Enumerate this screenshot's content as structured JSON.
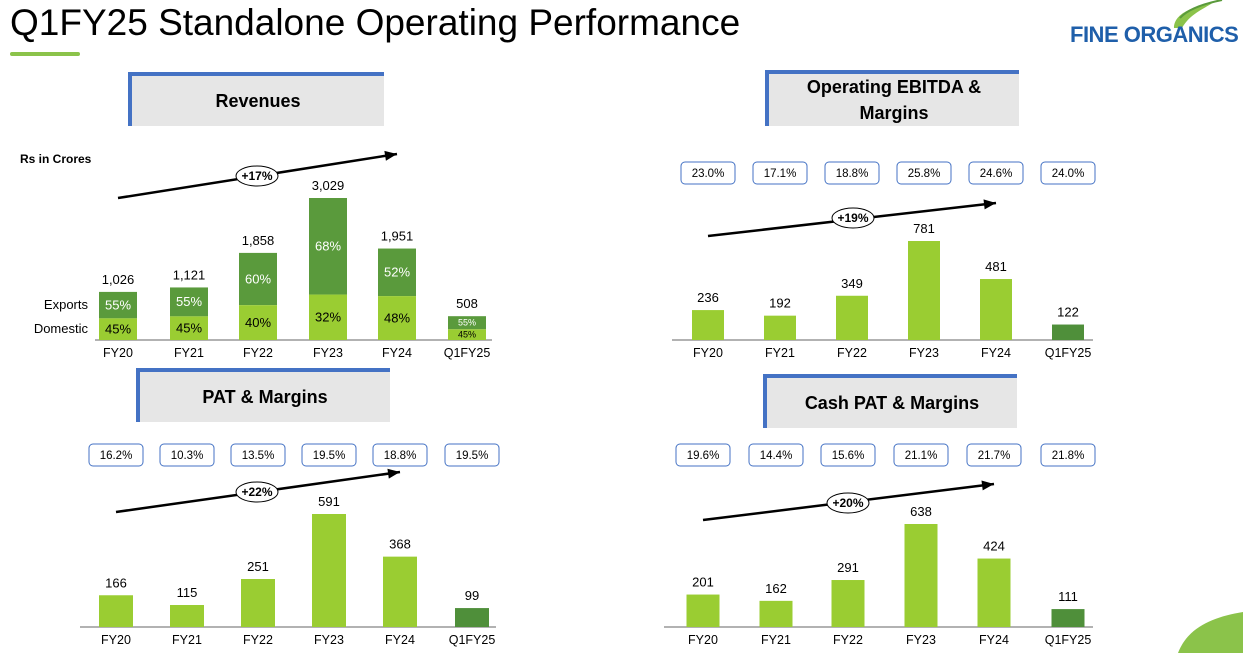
{
  "page": {
    "title": "Q1FY25 Standalone Operating Performance",
    "logo_text": "FINE ORGANICS",
    "colors": {
      "fy_bar": "#9acd32",
      "q1_bar": "#4f8f3a",
      "exports": "#5a9a3c",
      "domestic": "#9acd32",
      "box_border": "#4472c4",
      "header_accent": "#4472c4"
    }
  },
  "chart_data": [
    {
      "type": "bar",
      "title": "Revenues",
      "unit_label": "Rs in Crores",
      "categories": [
        "FY20",
        "FY21",
        "FY22",
        "FY23",
        "FY24",
        "Q1FY25"
      ],
      "values": [
        1026,
        1121,
        1858,
        3029,
        1951,
        508
      ],
      "value_labels": [
        "1,026",
        "1,121",
        "1,858",
        "3,029",
        "1,951",
        "508"
      ],
      "series": [
        {
          "name": "Exports",
          "shares": [
            "55%",
            "55%",
            "60%",
            "68%",
            "52%",
            "55%"
          ]
        },
        {
          "name": "Domestic",
          "shares": [
            "45%",
            "45%",
            "40%",
            "32%",
            "48%",
            "45%"
          ]
        }
      ],
      "growth_label": "+17%"
    },
    {
      "type": "bar",
      "title": "Operating EBITDA & Margins",
      "categories": [
        "FY20",
        "FY21",
        "FY22",
        "FY23",
        "FY24",
        "Q1FY25"
      ],
      "values": [
        236,
        192,
        349,
        781,
        481,
        122
      ],
      "value_labels": [
        "236",
        "192",
        "349",
        "781",
        "481",
        "122"
      ],
      "margins": [
        "23.0%",
        "17.1%",
        "18.8%",
        "25.8%",
        "24.6%",
        "24.0%"
      ],
      "growth_label": "+19%"
    },
    {
      "type": "bar",
      "title": "PAT & Margins",
      "categories": [
        "FY20",
        "FY21",
        "FY22",
        "FY23",
        "FY24",
        "Q1FY25"
      ],
      "values": [
        166,
        115,
        251,
        591,
        368,
        99
      ],
      "value_labels": [
        "166",
        "115",
        "251",
        "591",
        "368",
        "99"
      ],
      "margins": [
        "16.2%",
        "10.3%",
        "13.5%",
        "19.5%",
        "18.8%",
        "19.5%"
      ],
      "growth_label": "+22%"
    },
    {
      "type": "bar",
      "title": "Cash PAT & Margins",
      "categories": [
        "FY20",
        "FY21",
        "FY22",
        "FY23",
        "FY24",
        "Q1FY25"
      ],
      "values": [
        201,
        162,
        291,
        638,
        424,
        111
      ],
      "value_labels": [
        "201",
        "162",
        "291",
        "638",
        "424",
        "111"
      ],
      "margins": [
        "19.6%",
        "14.4%",
        "15.6%",
        "21.1%",
        "21.7%",
        "21.8%"
      ],
      "growth_label": "+20%"
    }
  ]
}
